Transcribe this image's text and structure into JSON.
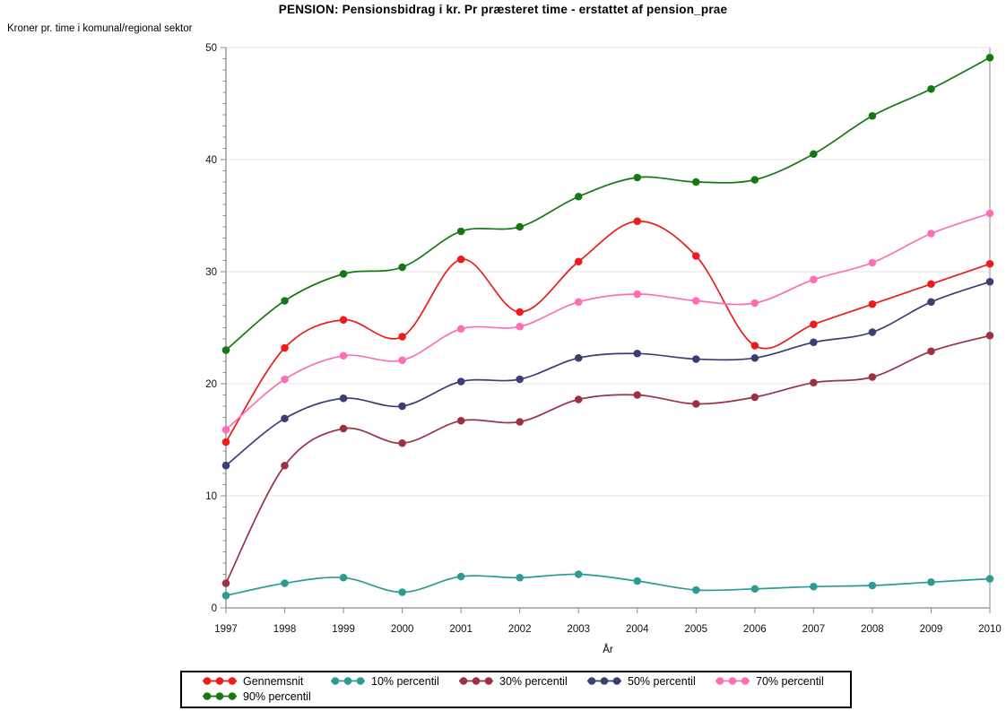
{
  "chart_data": {
    "type": "line",
    "title": "PENSION: Pensionsbidrag i kr. Pr præsteret time - erstattet af pension_prae",
    "ylabel": "Kroner pr. time i komunal/regional sektor",
    "xlabel": "År",
    "x": [
      1997,
      1998,
      1999,
      2000,
      2001,
      2002,
      2003,
      2004,
      2005,
      2006,
      2007,
      2008,
      2009,
      2010
    ],
    "ylim": [
      0,
      50
    ],
    "yticks": [
      0,
      10,
      20,
      30,
      40,
      50
    ],
    "y_minor_tick_step": 1,
    "grid": "horizontal",
    "legend_position": "bottom",
    "series": [
      {
        "name": "Gennemsnit",
        "color": "#ee1a1d",
        "values": [
          14.8,
          23.2,
          25.7,
          24.2,
          31.1,
          26.4,
          30.9,
          34.5,
          31.4,
          23.4,
          25.3,
          27.1,
          28.9,
          30.7
        ]
      },
      {
        "name": "10% percentil",
        "color": "#2b9b94",
        "values": [
          1.1,
          2.2,
          2.7,
          1.4,
          2.8,
          2.7,
          3.0,
          2.4,
          1.6,
          1.7,
          1.9,
          2.0,
          2.3,
          2.6
        ]
      },
      {
        "name": "30% percentil",
        "color": "#9c3142",
        "values": [
          2.2,
          12.7,
          16.0,
          14.7,
          16.7,
          16.6,
          18.6,
          19.0,
          18.2,
          18.8,
          20.1,
          20.6,
          22.9,
          24.3
        ]
      },
      {
        "name": "50% percentil",
        "color": "#3a3e73",
        "values": [
          12.7,
          16.9,
          18.7,
          18.0,
          20.2,
          20.4,
          22.3,
          22.7,
          22.2,
          22.3,
          23.7,
          24.6,
          27.3,
          29.1
        ]
      },
      {
        "name": "70% percentil",
        "color": "#ff6eb4",
        "values": [
          15.9,
          20.4,
          22.5,
          22.1,
          24.9,
          25.1,
          27.3,
          28.0,
          27.4,
          27.2,
          29.3,
          30.8,
          33.4,
          35.2
        ]
      },
      {
        "name": "90% percentil",
        "color": "#157815",
        "values": [
          23.0,
          27.4,
          29.8,
          30.4,
          33.6,
          34.0,
          36.7,
          38.4,
          38.0,
          38.2,
          40.5,
          43.9,
          46.3,
          49.1
        ]
      }
    ]
  },
  "colors": {
    "background": "#ffffff",
    "grid": "#e6e6e6",
    "axis": "#8c8c8c",
    "frame_right": "#a8a8a8",
    "tick": "#8c8c8c",
    "tick_label": "#111111",
    "legend_border": "#000000"
  }
}
